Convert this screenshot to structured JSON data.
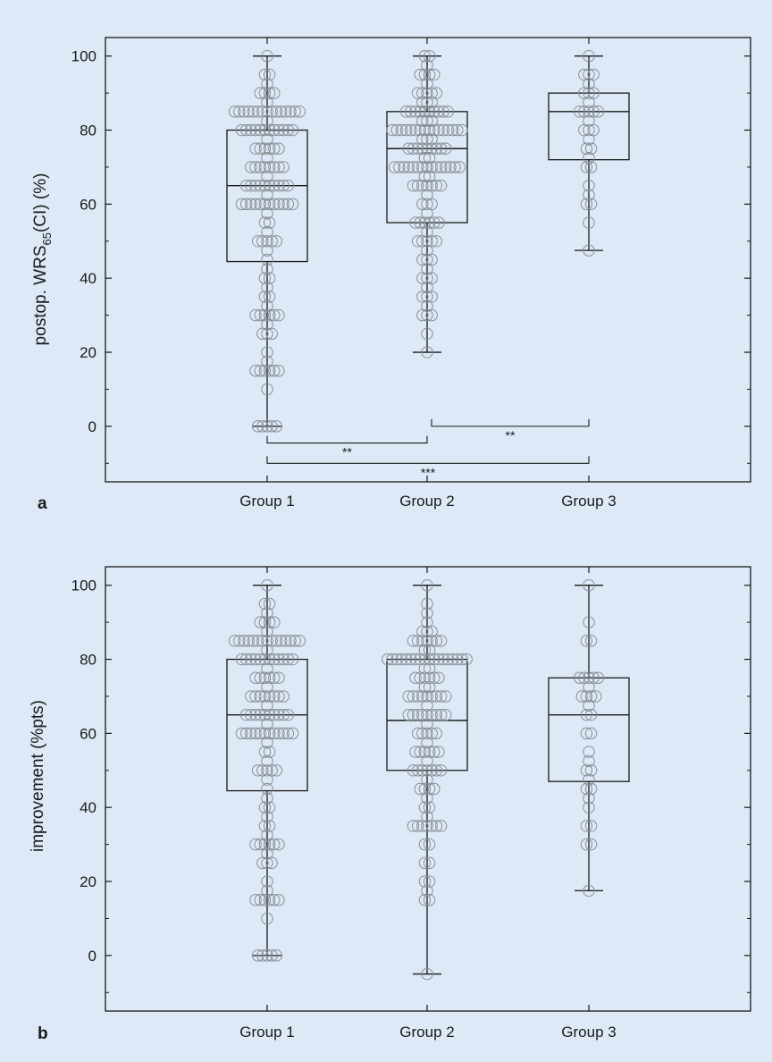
{
  "colors": {
    "background": "#dde9f6",
    "box_stroke": "#1a1a1a",
    "point_stroke": "#8a8f96"
  },
  "chart_data": [
    {
      "panel_label": "a",
      "type": "box",
      "categories": [
        "Group 1",
        "Group 2",
        "Group 3"
      ],
      "ylabel_main": "postop. WRS",
      "ylabel_sub": "65",
      "ylabel_tail": "(CI) (%)",
      "ylim": [
        -15,
        105
      ],
      "yticks": [
        0,
        20,
        40,
        60,
        80,
        100
      ],
      "boxes": [
        {
          "name": "Group 1",
          "q1": 44.5,
          "median": 65,
          "q3": 80,
          "whisker_low": 0,
          "whisker_high": 100
        },
        {
          "name": "Group 2",
          "q1": 55,
          "median": 75,
          "q3": 85,
          "whisker_low": 20,
          "whisker_high": 100
        },
        {
          "name": "Group 3",
          "q1": 72,
          "median": 85,
          "q3": 90,
          "whisker_low": 47.5,
          "whisker_high": 100
        }
      ],
      "points": [
        {
          "name": "Group 1",
          "values": [
            100,
            95,
            95,
            92.5,
            90,
            90,
            90,
            90,
            87.5,
            85,
            85,
            85,
            85,
            85,
            85,
            85,
            85,
            85,
            85,
            85,
            85,
            85,
            85,
            85,
            82.5,
            80,
            80,
            80,
            80,
            80,
            80,
            80,
            80,
            80,
            80,
            80,
            80,
            77.5,
            75,
            75,
            75,
            75,
            75,
            75,
            72.5,
            70,
            70,
            70,
            70,
            70,
            70,
            70,
            70,
            67.5,
            65,
            65,
            65,
            65,
            65,
            65,
            65,
            65,
            65,
            65,
            62.5,
            60,
            60,
            60,
            60,
            60,
            60,
            60,
            60,
            60,
            60,
            60,
            60,
            57.5,
            55,
            55,
            52.5,
            50,
            50,
            50,
            50,
            50,
            47.5,
            45,
            42.5,
            40,
            40,
            37.5,
            35,
            35,
            32.5,
            30,
            30,
            30,
            30,
            30,
            30,
            27.5,
            25,
            25,
            25,
            20,
            17.5,
            15,
            15,
            15,
            15,
            15,
            15,
            10,
            0,
            0,
            0,
            0,
            0
          ]
        },
        {
          "name": "Group 2",
          "values": [
            100,
            100,
            97.5,
            95,
            95,
            95,
            95,
            92.5,
            90,
            90,
            90,
            90,
            90,
            87.5,
            87.5,
            87.5,
            85,
            85,
            85,
            85,
            85,
            85,
            85,
            85,
            85,
            85,
            82.5,
            82.5,
            82.5,
            80,
            80,
            80,
            80,
            80,
            80,
            80,
            80,
            80,
            80,
            80,
            80,
            80,
            80,
            80,
            80,
            77.5,
            77.5,
            77.5,
            75,
            75,
            75,
            75,
            75,
            75,
            75,
            75,
            75,
            72.5,
            72.5,
            70,
            70,
            70,
            70,
            70,
            70,
            70,
            70,
            70,
            70,
            70,
            70,
            70,
            70,
            70,
            67.5,
            67.5,
            65,
            65,
            65,
            65,
            65,
            65,
            65,
            62.5,
            60,
            60,
            60,
            57.5,
            55,
            55,
            55,
            55,
            55,
            55,
            52.5,
            50,
            50,
            50,
            50,
            50,
            47.5,
            45,
            45,
            45,
            42.5,
            40,
            40,
            40,
            37.5,
            35,
            35,
            35,
            32.5,
            30,
            30,
            30,
            25,
            20
          ]
        },
        {
          "name": "Group 3",
          "values": [
            100,
            95,
            95,
            95,
            92.5,
            90,
            90,
            90,
            87.5,
            85,
            85,
            85,
            85,
            85,
            82.5,
            80,
            80,
            80,
            77.5,
            75,
            75,
            72.5,
            70,
            70,
            65,
            62.5,
            60,
            60,
            55,
            47.5
          ]
        }
      ],
      "significance": [
        {
          "from": 0,
          "to": 1,
          "y": -4.5,
          "label": "**"
        },
        {
          "from": 1,
          "to": 2,
          "y": 0,
          "label": "**"
        },
        {
          "from": 0,
          "to": 2,
          "y": -10,
          "label": "***"
        }
      ]
    },
    {
      "panel_label": "b",
      "type": "box",
      "categories": [
        "Group 1",
        "Group 2",
        "Group 3"
      ],
      "ylabel_main": "improvement (%pts)",
      "ylabel_sub": "",
      "ylabel_tail": "",
      "ylim": [
        -15,
        105
      ],
      "yticks": [
        0,
        20,
        40,
        60,
        80,
        100
      ],
      "boxes": [
        {
          "name": "Group 1",
          "q1": 44.5,
          "median": 65,
          "q3": 80,
          "whisker_low": 0,
          "whisker_high": 100
        },
        {
          "name": "Group 2",
          "q1": 50,
          "median": 63.5,
          "q3": 80,
          "whisker_low": -5,
          "whisker_high": 100
        },
        {
          "name": "Group 3",
          "q1": 47,
          "median": 65,
          "q3": 75,
          "whisker_low": 17.5,
          "whisker_high": 100
        }
      ],
      "points": [
        {
          "name": "Group 1",
          "values": [
            100,
            95,
            95,
            92.5,
            90,
            90,
            90,
            90,
            87.5,
            85,
            85,
            85,
            85,
            85,
            85,
            85,
            85,
            85,
            85,
            85,
            85,
            85,
            85,
            85,
            82.5,
            80,
            80,
            80,
            80,
            80,
            80,
            80,
            80,
            80,
            80,
            80,
            80,
            77.5,
            75,
            75,
            75,
            75,
            75,
            75,
            72.5,
            70,
            70,
            70,
            70,
            70,
            70,
            70,
            70,
            67.5,
            65,
            65,
            65,
            65,
            65,
            65,
            65,
            65,
            65,
            65,
            62.5,
            60,
            60,
            60,
            60,
            60,
            60,
            60,
            60,
            60,
            60,
            60,
            60,
            57.5,
            55,
            55,
            52.5,
            50,
            50,
            50,
            50,
            50,
            47.5,
            45,
            42.5,
            40,
            40,
            37.5,
            35,
            35,
            32.5,
            30,
            30,
            30,
            30,
            30,
            30,
            27.5,
            25,
            25,
            25,
            20,
            17.5,
            15,
            15,
            15,
            15,
            15,
            15,
            10,
            0,
            0,
            0,
            0,
            0
          ]
        },
        {
          "name": "Group 2",
          "values": [
            100,
            95,
            92.5,
            90,
            87.5,
            87.5,
            87.5,
            85,
            85,
            85,
            85,
            85,
            85,
            85,
            82.5,
            82.5,
            80,
            80,
            80,
            80,
            80,
            80,
            80,
            80,
            80,
            80,
            80,
            80,
            80,
            80,
            80,
            80,
            80,
            80,
            77.5,
            77.5,
            75,
            75,
            75,
            75,
            75,
            75,
            72.5,
            72.5,
            70,
            70,
            70,
            70,
            70,
            70,
            70,
            70,
            70,
            67.5,
            65,
            65,
            65,
            65,
            65,
            65,
            65,
            65,
            65,
            62.5,
            60,
            60,
            60,
            60,
            60,
            57.5,
            55,
            55,
            55,
            55,
            55,
            55,
            52.5,
            50,
            50,
            50,
            50,
            50,
            50,
            50,
            47.5,
            45,
            45,
            45,
            45,
            42.5,
            40,
            40,
            37.5,
            35,
            35,
            35,
            35,
            35,
            35,
            35,
            30,
            30,
            25,
            25,
            20,
            20,
            17.5,
            15,
            15,
            -5
          ]
        },
        {
          "name": "Group 3",
          "values": [
            100,
            90,
            85,
            85,
            75,
            75,
            75,
            75,
            75,
            72.5,
            70,
            70,
            70,
            70,
            67.5,
            65,
            65,
            60,
            60,
            55,
            52.5,
            50,
            50,
            47.5,
            45,
            45,
            42.5,
            40,
            35,
            35,
            30,
            30,
            17.5
          ]
        }
      ],
      "significance": []
    }
  ]
}
